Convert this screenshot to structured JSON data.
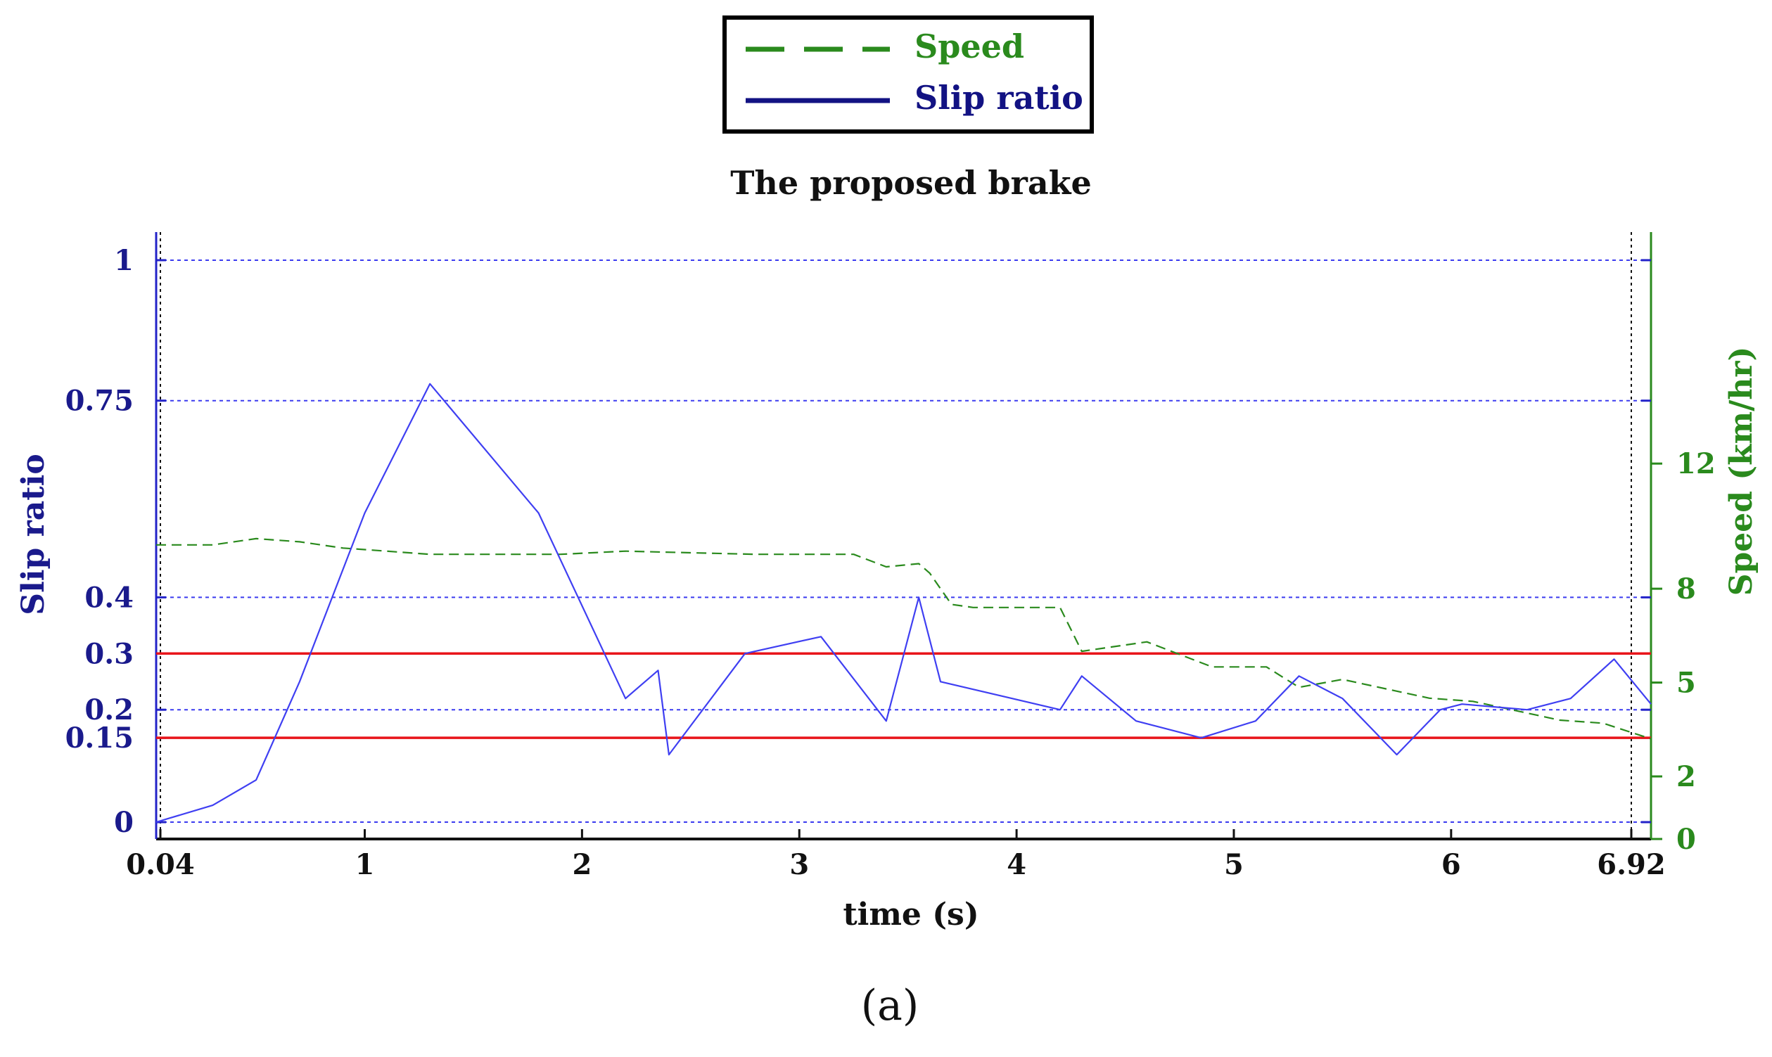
{
  "chart_data": {
    "type": "line",
    "title": "The proposed brake",
    "caption": "(a)",
    "xlabel": "time (s)",
    "ylabel_left": "Slip ratio",
    "ylabel_right": "Speed  (km/hr)",
    "xlim": [
      0.04,
      6.92
    ],
    "ylim_left": [
      -0.03,
      1.05
    ],
    "ylim_right": [
      0,
      19.4
    ],
    "x_ticks": [
      {
        "value": 0.04,
        "label": "0.04"
      },
      {
        "value": 1,
        "label": "1"
      },
      {
        "value": 2,
        "label": "2"
      },
      {
        "value": 3,
        "label": "3"
      },
      {
        "value": 4,
        "label": "4"
      },
      {
        "value": 5,
        "label": "5"
      },
      {
        "value": 6,
        "label": "6"
      },
      {
        "value": 6.92,
        "label": "6.92"
      }
    ],
    "y_ticks_left": [
      {
        "value": 1,
        "label": "1"
      },
      {
        "value": 0.75,
        "label": "0.75"
      },
      {
        "value": 0.4,
        "label": "0.4"
      },
      {
        "value": 0.3,
        "label": "0.3"
      },
      {
        "value": 0.2,
        "label": "0.2"
      },
      {
        "value": 0.15,
        "label": "0.15"
      },
      {
        "value": 0,
        "label": "0"
      }
    ],
    "y_ticks_right": [
      {
        "value": 12,
        "label": "12"
      },
      {
        "value": 8,
        "label": "8"
      },
      {
        "value": 5,
        "label": "5"
      },
      {
        "value": 2,
        "label": "2"
      },
      {
        "value": 0,
        "label": "0"
      }
    ],
    "grid": "dotted horizontal at left ticks",
    "legend_position": "top-center",
    "reference_lines": [
      {
        "axis": "left",
        "value": 0.3,
        "color": "#e8141a"
      },
      {
        "axis": "left",
        "value": 0.15,
        "color": "#e8141a"
      }
    ],
    "series": [
      {
        "name": "Speed",
        "axis": "right",
        "style": "dashed",
        "color": "#2a8a1d",
        "x": [
          0.04,
          0.3,
          0.5,
          0.7,
          0.9,
          1.1,
          1.3,
          1.6,
          1.9,
          2.2,
          2.5,
          2.8,
          3.1,
          3.25,
          3.4,
          3.55,
          3.6,
          3.7,
          3.8,
          4.0,
          4.2,
          4.3,
          4.4,
          4.6,
          4.9,
          5.0,
          5.15,
          5.3,
          5.5,
          5.7,
          5.9,
          6.1,
          6.3,
          6.5,
          6.7,
          6.92
        ],
        "y": [
          9.4,
          9.4,
          9.6,
          9.5,
          9.3,
          9.2,
          9.1,
          9.1,
          9.1,
          9.2,
          9.15,
          9.1,
          9.1,
          9.1,
          8.7,
          8.8,
          8.5,
          7.5,
          7.4,
          7.4,
          7.4,
          6.0,
          6.1,
          6.3,
          5.5,
          5.5,
          5.5,
          4.85,
          5.1,
          4.8,
          4.5,
          4.4,
          4.1,
          3.8,
          3.7,
          3.2
        ]
      },
      {
        "name": "Slip ratio",
        "axis": "left",
        "style": "solid",
        "color": "#3f3ff2",
        "x": [
          0.04,
          0.3,
          0.5,
          0.7,
          1.0,
          1.3,
          1.8,
          2.2,
          2.35,
          2.4,
          2.75,
          3.1,
          3.4,
          3.55,
          3.65,
          4.2,
          4.3,
          4.55,
          4.85,
          5.1,
          5.3,
          5.5,
          5.75,
          5.95,
          6.05,
          6.35,
          6.55,
          6.75,
          6.92
        ],
        "y": [
          0.0,
          0.03,
          0.075,
          0.25,
          0.55,
          0.78,
          0.55,
          0.22,
          0.27,
          0.12,
          0.3,
          0.33,
          0.18,
          0.4,
          0.25,
          0.2,
          0.26,
          0.18,
          0.15,
          0.18,
          0.26,
          0.22,
          0.12,
          0.2,
          0.21,
          0.2,
          0.22,
          0.29,
          0.21
        ]
      }
    ]
  }
}
